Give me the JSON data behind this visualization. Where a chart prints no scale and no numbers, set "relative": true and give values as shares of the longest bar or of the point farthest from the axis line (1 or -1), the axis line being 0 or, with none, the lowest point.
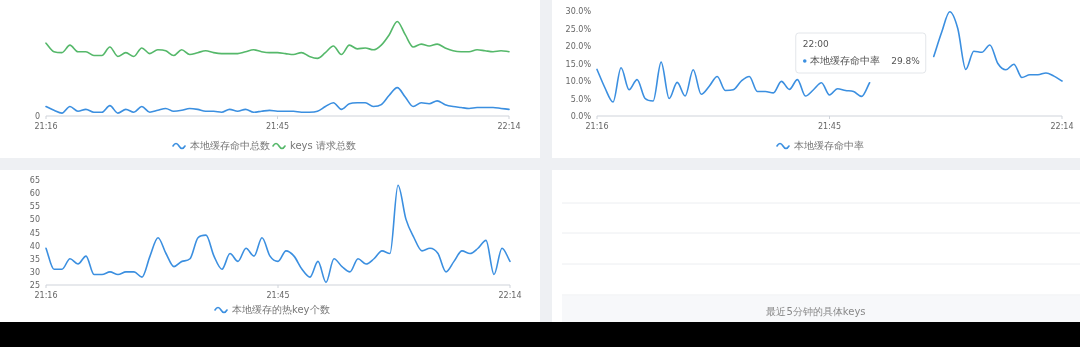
{
  "chart_data": [
    {
      "type": "line",
      "relative": true,
      "legend": "bottom",
      "annotations": [
        "0"
      ],
      "categories": [
        "21:16",
        null,
        null,
        null,
        null,
        null,
        null,
        null,
        null,
        null,
        null,
        null,
        null,
        null,
        null,
        null,
        null,
        null,
        null,
        null,
        null,
        null,
        null,
        null,
        null,
        null,
        null,
        null,
        null,
        "21:45",
        null,
        null,
        null,
        null,
        null,
        null,
        null,
        null,
        null,
        null,
        null,
        null,
        null,
        null,
        null,
        null,
        null,
        null,
        null,
        null,
        null,
        null,
        null,
        null,
        null,
        null,
        null,
        null,
        "22:14"
      ],
      "series": [
        {
          "name": "本地缓存命中总数",
          "color": "#3b8fe0",
          "values": [
            0.1,
            0.06,
            0.03,
            0.1,
            0.05,
            0.07,
            0.04,
            0.04,
            0.11,
            0.03,
            0.07,
            0.04,
            0.1,
            0.04,
            0.06,
            0.08,
            0.05,
            0.06,
            0.08,
            0.07,
            0.05,
            0.05,
            0.04,
            0.07,
            0.05,
            0.07,
            0.04,
            0.05,
            0.06,
            0.05,
            0.05,
            0.05,
            0.04,
            0.04,
            0.05,
            0.1,
            0.14,
            0.07,
            0.13,
            0.14,
            0.14,
            0.1,
            0.12,
            0.22,
            0.3,
            0.2,
            0.1,
            0.14,
            0.13,
            0.16,
            0.12,
            0.1,
            0.09,
            0.08,
            0.09,
            0.09,
            0.09,
            0.08,
            0.07
          ]
        },
        {
          "name": "keys 请求总数",
          "color": "#55b86a",
          "values": [
            0.77,
            0.68,
            0.67,
            0.75,
            0.68,
            0.68,
            0.64,
            0.64,
            0.73,
            0.63,
            0.67,
            0.63,
            0.72,
            0.66,
            0.7,
            0.69,
            0.64,
            0.7,
            0.65,
            0.67,
            0.69,
            0.67,
            0.66,
            0.66,
            0.66,
            0.68,
            0.7,
            0.68,
            0.67,
            0.67,
            0.66,
            0.65,
            0.67,
            0.63,
            0.61,
            0.67,
            0.74,
            0.65,
            0.75,
            0.71,
            0.72,
            0.7,
            0.75,
            0.86,
            1.0,
            0.86,
            0.73,
            0.76,
            0.74,
            0.76,
            0.72,
            0.69,
            0.68,
            0.68,
            0.7,
            0.69,
            0.68,
            0.69,
            0.68
          ]
        }
      ]
    },
    {
      "type": "line",
      "legend": "bottom",
      "annotations": [
        "22:00",
        "本地缓存命中率",
        "29.8%"
      ],
      "ylim": [
        0,
        30
      ],
      "yticks": [
        {
          "value": 0,
          "label": "0.0%"
        },
        {
          "value": 5,
          "label": "5.0%"
        },
        {
          "value": 10,
          "label": "10.0%"
        },
        {
          "value": 15,
          "label": "15.0%"
        },
        {
          "value": 20,
          "label": "20.0%"
        },
        {
          "value": 25,
          "label": "25.0%"
        },
        {
          "value": 30,
          "label": "30.0%"
        }
      ],
      "categories": [
        "21:16",
        null,
        null,
        null,
        null,
        null,
        null,
        null,
        null,
        null,
        null,
        null,
        null,
        null,
        null,
        null,
        null,
        null,
        null,
        null,
        null,
        null,
        null,
        null,
        null,
        null,
        null,
        null,
        null,
        "21:45",
        null,
        null,
        null,
        null,
        null,
        null,
        null,
        null,
        null,
        null,
        null,
        null,
        null,
        null,
        null,
        null,
        null,
        null,
        null,
        null,
        null,
        null,
        null,
        null,
        null,
        null,
        null,
        null,
        "22:14"
      ],
      "series": [
        {
          "name": "本地缓存命中率",
          "color": "#3b8fe0",
          "values": [
            13.3,
            8,
            4,
            13.8,
            7.5,
            10.4,
            5,
            4.3,
            15.4,
            5,
            9.6,
            5.7,
            13.2,
            6.2,
            8.5,
            11.3,
            7.3,
            7.5,
            10,
            11.3,
            7,
            7,
            6.6,
            9.9,
            7.6,
            10.4,
            5.7,
            7.5,
            9.5,
            6,
            7.8,
            7.3,
            7,
            5.6,
            9.5,
            null,
            null,
            null,
            null,
            null,
            null,
            null,
            17,
            24,
            29.8,
            25,
            13.3,
            18.5,
            18.2,
            20.3,
            15,
            13.2,
            14.8,
            11,
            11.8,
            11.8,
            12.3,
            11.4,
            10
          ]
        }
      ]
    },
    {
      "type": "line",
      "legend": "bottom",
      "ylim": [
        25,
        65
      ],
      "yticks": [
        25,
        30,
        35,
        40,
        45,
        50,
        55,
        60,
        65
      ],
      "categories": [
        "21:16",
        null,
        null,
        null,
        null,
        null,
        null,
        null,
        null,
        null,
        null,
        null,
        null,
        null,
        null,
        null,
        null,
        null,
        null,
        null,
        null,
        null,
        null,
        null,
        null,
        null,
        null,
        null,
        null,
        "21:45",
        null,
        null,
        null,
        null,
        null,
        null,
        null,
        null,
        null,
        null,
        null,
        null,
        null,
        null,
        null,
        null,
        null,
        null,
        null,
        null,
        null,
        null,
        null,
        null,
        null,
        null,
        null,
        null,
        "22:14"
      ],
      "series": [
        {
          "name": "本地缓存的热key个数",
          "color": "#3b8fe0",
          "values": [
            39,
            31,
            31,
            35,
            33,
            36,
            29,
            29,
            30,
            29,
            30,
            30,
            28,
            36,
            43,
            37,
            32,
            34,
            35,
            43,
            44,
            36,
            31,
            37,
            34,
            39,
            36,
            43,
            36,
            34,
            38,
            36,
            31,
            28,
            34,
            26,
            35,
            32,
            30,
            35,
            33,
            35,
            38,
            37,
            63,
            50,
            43,
            38,
            39,
            37,
            30,
            34,
            38,
            37,
            39,
            42,
            29,
            39,
            34
          ]
        }
      ]
    },
    {
      "type": "other",
      "annotations": [
        "最近5分钟的具体keys"
      ]
    }
  ]
}
